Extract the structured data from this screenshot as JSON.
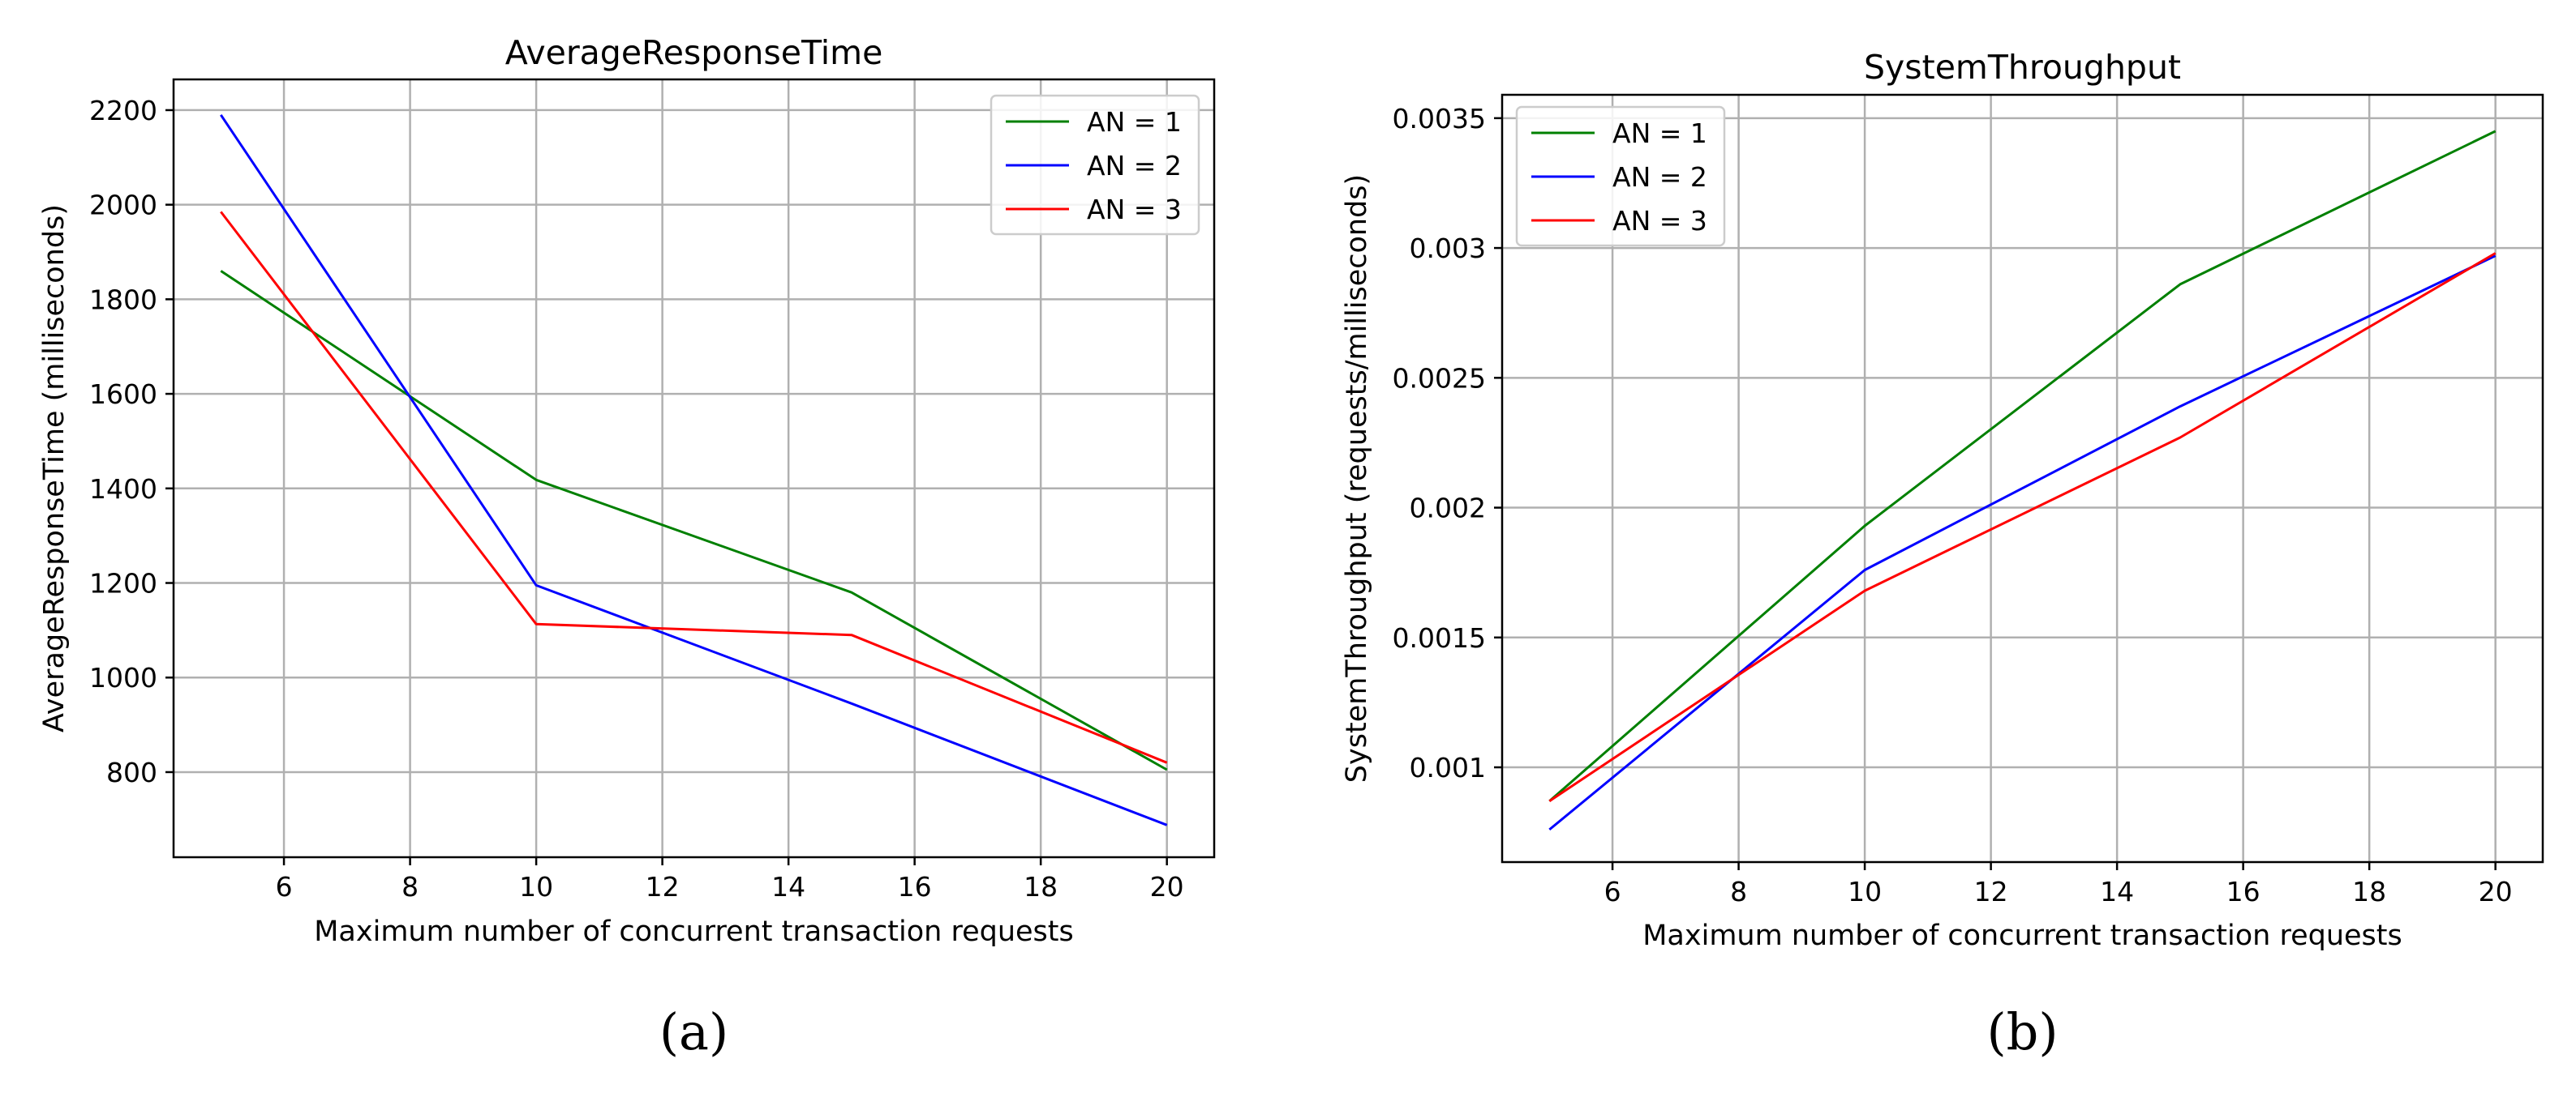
{
  "chart_data": [
    {
      "type": "line",
      "panel_label": "(a)",
      "title": "AverageResponseTime",
      "xlabel": "Maximum number of concurrent transaction requests",
      "ylabel": "AverageResponseTime (milliseconds)",
      "xlim": [
        4.25,
        20.75
      ],
      "ylim": [
        620,
        2265
      ],
      "xticks": [
        6,
        8,
        10,
        12,
        14,
        16,
        18,
        20
      ],
      "xtick_labels": [
        "6",
        "8",
        "10",
        "12",
        "14",
        "16",
        "18",
        "20"
      ],
      "yticks": [
        800,
        1000,
        1200,
        1400,
        1600,
        1800,
        2000,
        2200
      ],
      "ytick_labels": [
        "800",
        "1000",
        "1200",
        "1400",
        "1600",
        "1800",
        "2000",
        "2200"
      ],
      "legend_position": "top-right",
      "x": [
        5,
        10,
        15,
        20
      ],
      "series": [
        {
          "name": "AN = 1",
          "color": "#008000",
          "values": [
            1860,
            1418,
            1180,
            805
          ]
        },
        {
          "name": "AN = 2",
          "color": "#0000ff",
          "values": [
            2190,
            1195,
            945,
            688
          ]
        },
        {
          "name": "AN = 3",
          "color": "#ff0000",
          "values": [
            1985,
            1113,
            1090,
            820
          ]
        }
      ]
    },
    {
      "type": "line",
      "panel_label": "(b)",
      "title": "SystemThroughput",
      "xlabel": "Maximum number of concurrent transaction requests",
      "ylabel": "SystemThroughput (requests/milliseconds)",
      "xlim": [
        4.25,
        20.75
      ],
      "ylim": [
        0.000635,
        0.00359
      ],
      "xticks": [
        6,
        8,
        10,
        12,
        14,
        16,
        18,
        20
      ],
      "xtick_labels": [
        "6",
        "8",
        "10",
        "12",
        "14",
        "16",
        "18",
        "20"
      ],
      "yticks": [
        0.001,
        0.0015,
        0.002,
        0.0025,
        0.003,
        0.0035
      ],
      "ytick_labels": [
        "0.001",
        "0.0015",
        "0.002",
        "0.0025",
        "0.003",
        "0.0035"
      ],
      "legend_position": "top-left",
      "x": [
        5,
        10,
        15,
        20
      ],
      "series": [
        {
          "name": "AN = 1",
          "color": "#008000",
          "values": [
            0.00087,
            0.00193,
            0.00286,
            0.00345
          ]
        },
        {
          "name": "AN = 2",
          "color": "#0000ff",
          "values": [
            0.00076,
            0.00176,
            0.00239,
            0.00297
          ]
        },
        {
          "name": "AN = 3",
          "color": "#ff0000",
          "values": [
            0.00087,
            0.00168,
            0.00227,
            0.00298
          ]
        }
      ]
    }
  ]
}
